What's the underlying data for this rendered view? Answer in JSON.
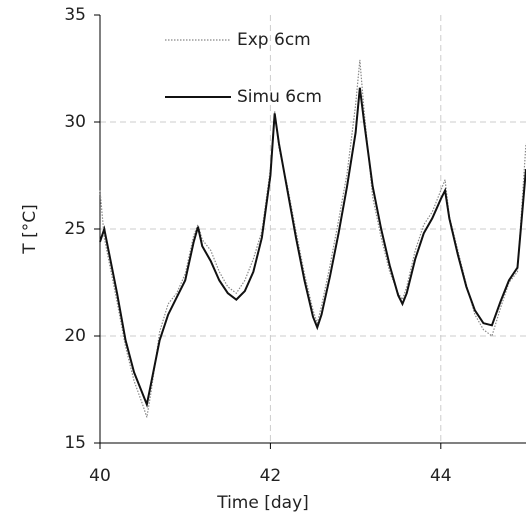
{
  "chart_data": {
    "type": "line",
    "xlabel": "Time [day]",
    "ylabel": "T [°C]",
    "x": [
      40,
      40.05,
      40.1,
      40.2,
      40.3,
      40.4,
      40.5,
      40.55,
      40.6,
      40.7,
      40.8,
      40.9,
      41.0,
      41.1,
      41.15,
      41.2,
      41.3,
      41.4,
      41.5,
      41.6,
      41.7,
      41.8,
      41.9,
      42.0,
      42.05,
      42.1,
      42.2,
      42.3,
      42.4,
      42.5,
      42.55,
      42.6,
      42.7,
      42.8,
      42.9,
      43.0,
      43.05,
      43.1,
      43.2,
      43.3,
      43.4,
      43.5,
      43.55,
      43.6,
      43.7,
      43.8,
      43.9,
      44.0,
      44.05,
      44.1,
      44.2,
      44.3,
      44.4,
      44.5,
      44.6,
      44.7,
      44.8,
      44.9,
      45.0
    ],
    "series": [
      {
        "name": "Exp 6cm",
        "color": "#888888",
        "style": "dotted",
        "values": [
          26.8,
          24.6,
          23.6,
          21.6,
          19.5,
          17.9,
          16.8,
          16.2,
          17.4,
          20.2,
          21.5,
          22.0,
          22.9,
          24.7,
          25.2,
          24.5,
          24.0,
          23.0,
          22.3,
          22.0,
          22.6,
          23.6,
          24.9,
          27.8,
          30.5,
          28.8,
          27.0,
          24.9,
          22.9,
          21.2,
          20.6,
          21.4,
          23.3,
          25.4,
          27.6,
          30.8,
          32.9,
          30.5,
          26.5,
          24.6,
          23.0,
          22.0,
          21.7,
          22.3,
          24.0,
          25.2,
          25.8,
          26.8,
          27.3,
          25.6,
          24.0,
          22.4,
          21.0,
          20.3,
          20.0,
          21.3,
          22.5,
          23.0,
          29.0
        ]
      },
      {
        "name": "Simu 6cm",
        "color": "#111111",
        "style": "solid",
        "values": [
          24.4,
          25.0,
          24.0,
          22.0,
          19.8,
          18.3,
          17.3,
          16.8,
          17.8,
          19.8,
          21.0,
          21.8,
          22.6,
          24.4,
          25.1,
          24.2,
          23.5,
          22.6,
          22.0,
          21.7,
          22.1,
          23.0,
          24.6,
          27.5,
          30.4,
          29.0,
          26.8,
          24.6,
          22.6,
          20.9,
          20.4,
          21.0,
          22.8,
          24.8,
          27.0,
          29.5,
          31.6,
          30.0,
          27.0,
          25.0,
          23.3,
          21.9,
          21.5,
          22.0,
          23.6,
          24.8,
          25.5,
          26.4,
          26.8,
          25.5,
          23.8,
          22.3,
          21.2,
          20.6,
          20.5,
          21.6,
          22.6,
          23.2,
          27.8
        ]
      }
    ],
    "xlim": [
      40,
      45
    ],
    "xticks": [
      40,
      42,
      44
    ],
    "ylim": [
      15,
      35
    ],
    "yticks": [
      15,
      20,
      25,
      30,
      35
    ],
    "grid": true,
    "legend": "upper left"
  }
}
